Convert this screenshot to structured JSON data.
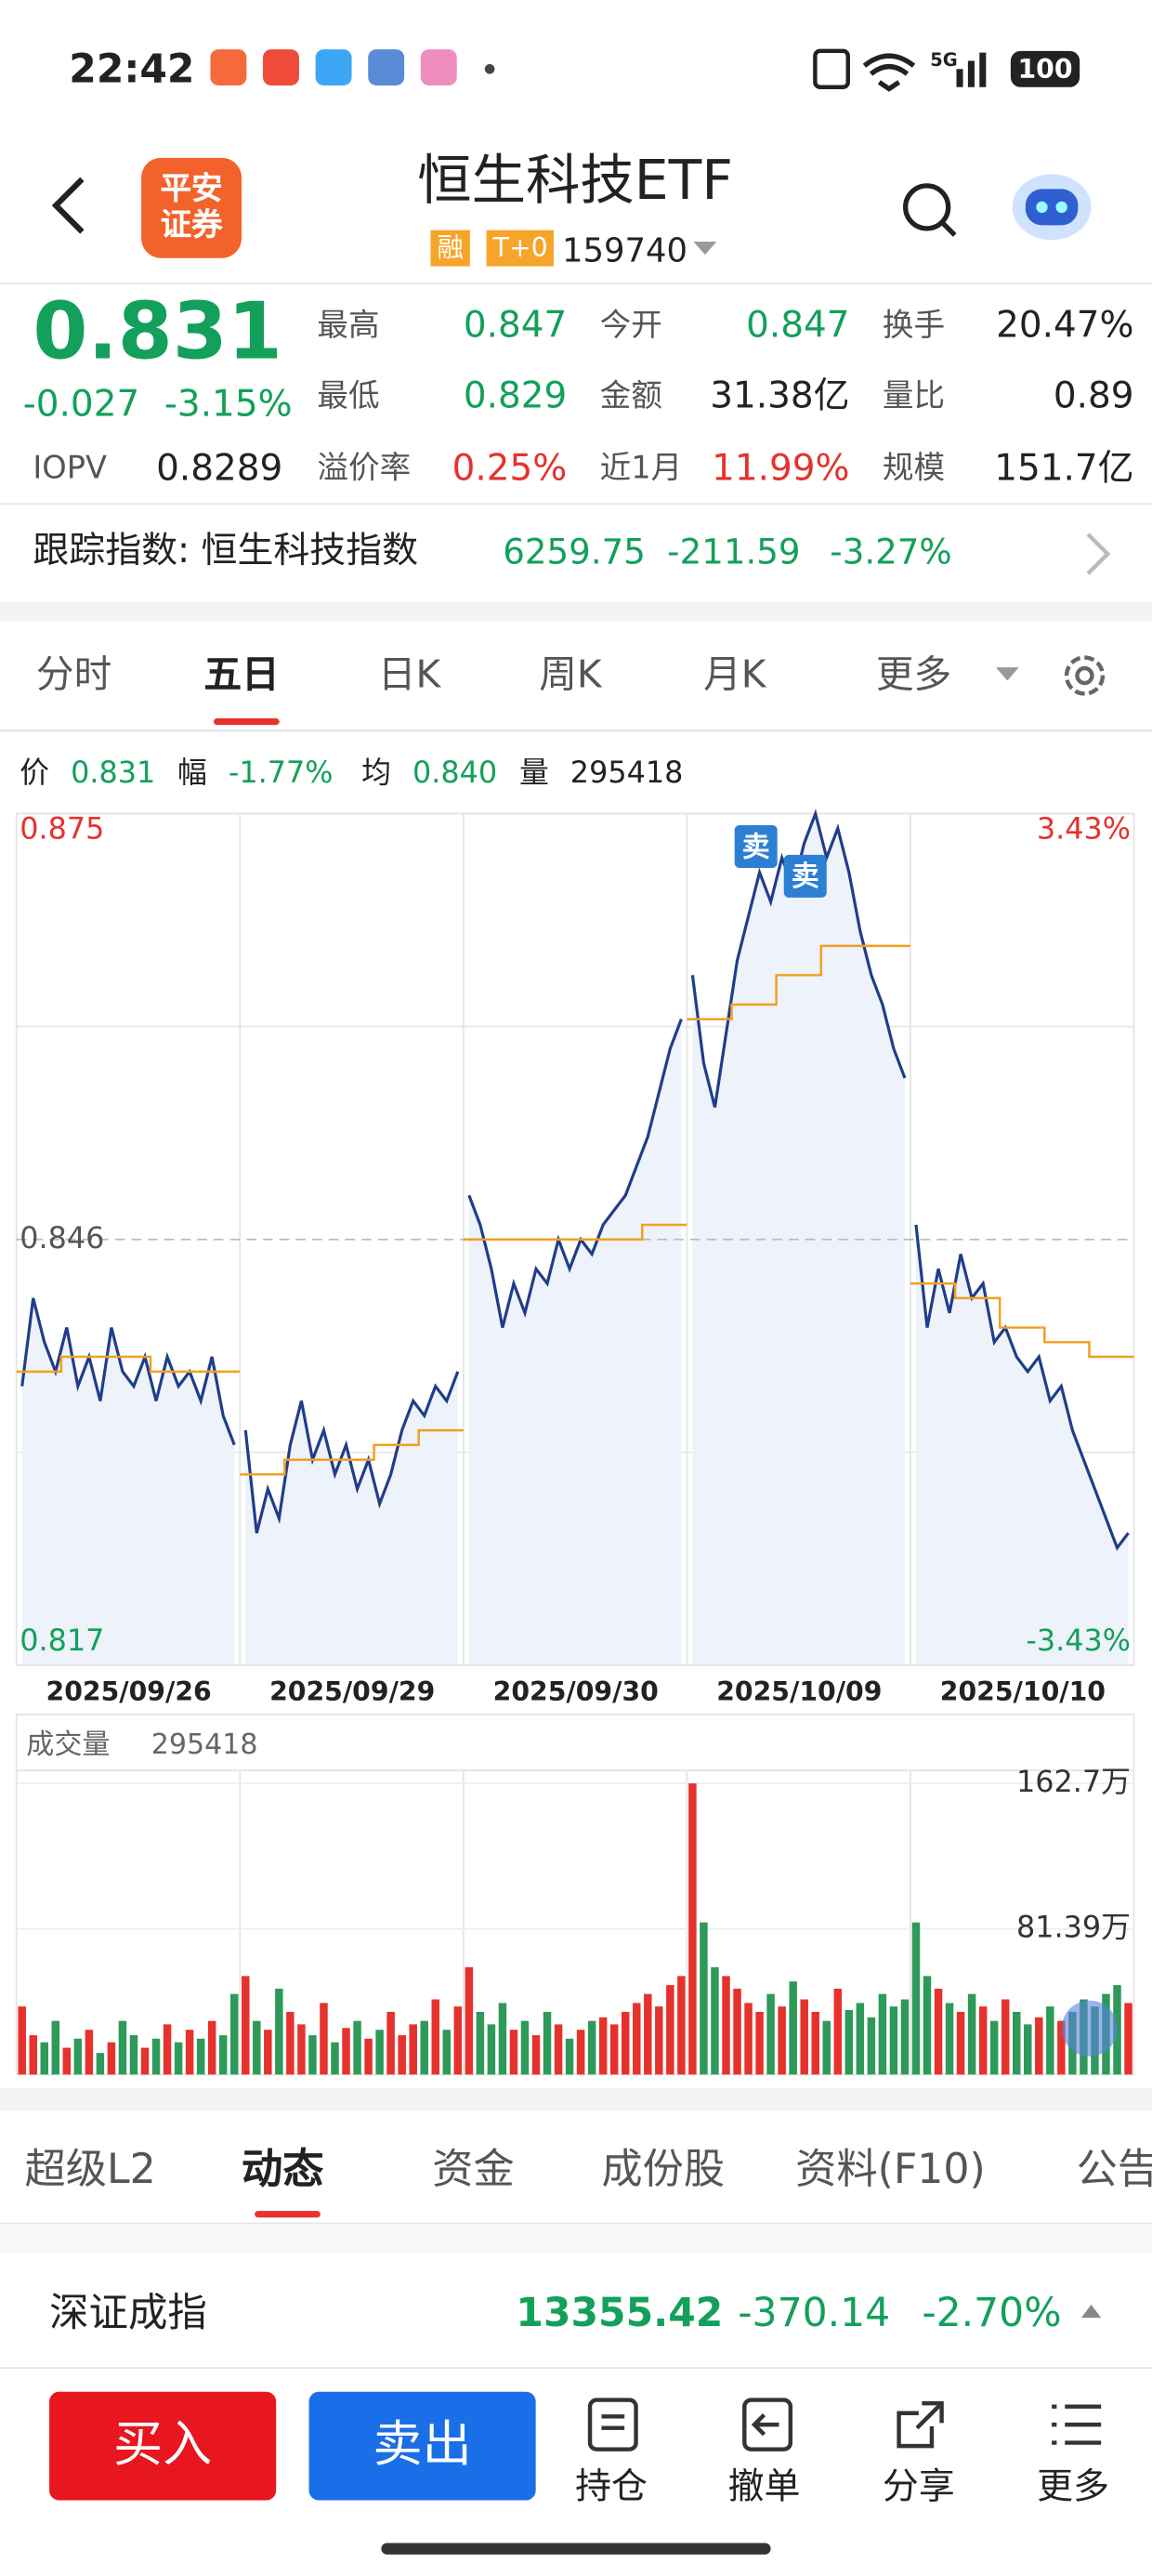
{
  "status_bar": {
    "time": "22:42",
    "network": "5G",
    "battery": "100"
  },
  "header": {
    "logo": [
      "平安",
      "证券"
    ],
    "title": "恒生科技ETF",
    "tags": [
      "融",
      "T+0"
    ],
    "code": "159740"
  },
  "quote": {
    "price": "0.831",
    "change": "-0.027",
    "change_pct": "-3.15%",
    "stats": [
      {
        "label": "最高",
        "value": "0.847"
      },
      {
        "label": "今开",
        "value": "0.847"
      },
      {
        "label": "换手",
        "value": "20.47%"
      },
      {
        "label": "最低",
        "value": "0.829"
      },
      {
        "label": "金额",
        "value": "31.38亿"
      },
      {
        "label": "量比",
        "value": "0.89"
      },
      {
        "label": "IOPV",
        "value": "0.8289"
      },
      {
        "label": "溢价率",
        "value": "0.25%"
      },
      {
        "label": "近1月",
        "value": "11.99%"
      },
      {
        "label": "规模",
        "value": "151.7亿"
      }
    ]
  },
  "tracking": {
    "label": "跟踪指数: 恒生科技指数",
    "value": "6259.75",
    "change": "-211.59",
    "change_pct": "-3.27%"
  },
  "chart_tabs": [
    "分时",
    "五日",
    "日K",
    "周K",
    "月K",
    "更多"
  ],
  "info": [
    {
      "label": "价",
      "value": "0.831"
    },
    {
      "label": "幅",
      "value": "-1.77%"
    },
    {
      "label": "均",
      "value": "0.840"
    },
    {
      "label": "量",
      "value": "295418"
    }
  ],
  "chart_data": [
    {
      "type": "line",
      "categories": [
        "2025/09/26",
        "2025/09/29",
        "2025/09/30",
        "2025/10/09",
        "2025/10/10"
      ],
      "ylim": [
        0.817,
        0.875
      ],
      "yticks": [
        0.817,
        0.846,
        0.875
      ],
      "y2lim": [
        -3.43,
        3.43
      ],
      "y2ticks": [
        {
          "value": -3.43,
          "label": "-3.43%"
        },
        {
          "value": 3.43,
          "label": "3.43%"
        }
      ],
      "annotations": [
        "卖",
        "卖"
      ],
      "series": [
        {
          "color": "#1f3d8a",
          "values": [
            [
              0.836,
              0.842,
              0.839,
              0.837,
              0.84,
              0.836,
              0.838,
              0.835,
              0.84,
              0.837,
              0.836,
              0.838,
              0.835,
              0.838,
              0.836,
              0.837,
              0.835,
              0.838,
              0.834,
              0.832
            ],
            [
              0.833,
              0.826,
              0.829,
              0.827,
              0.832,
              0.835,
              0.831,
              0.833,
              0.83,
              0.832,
              0.829,
              0.831,
              0.828,
              0.83,
              0.833,
              0.835,
              0.834,
              0.836,
              0.835,
              0.837
            ],
            [
              0.849,
              0.847,
              0.844,
              0.84,
              0.843,
              0.841,
              0.844,
              0.843,
              0.846,
              0.844,
              0.846,
              0.845,
              0.847,
              0.848,
              0.849,
              0.851,
              0.853,
              0.856,
              0.859,
              0.861
            ],
            [
              0.864,
              0.858,
              0.855,
              0.86,
              0.865,
              0.868,
              0.871,
              0.869,
              0.872,
              0.87,
              0.873,
              0.875,
              0.872,
              0.874,
              0.871,
              0.867,
              0.864,
              0.862,
              0.859,
              0.857
            ],
            [
              0.847,
              0.84,
              0.844,
              0.841,
              0.845,
              0.842,
              0.843,
              0.839,
              0.84,
              0.838,
              0.837,
              0.838,
              0.835,
              0.836,
              0.833,
              0.831,
              0.829,
              0.827,
              0.825,
              0.826
            ]
          ]
        },
        {
          "color": "#f0a020",
          "values": [
            [
              0.837,
              0.838,
              0.838,
              0.837,
              0.837
            ],
            [
              0.83,
              0.831,
              0.831,
              0.832,
              0.833
            ],
            [
              0.846,
              0.846,
              0.846,
              0.846,
              0.847
            ],
            [
              0.861,
              0.862,
              0.864,
              0.866,
              0.866
            ],
            [
              0.843,
              0.842,
              0.84,
              0.839,
              0.838
            ]
          ]
        }
      ]
    },
    {
      "type": "bar",
      "title": "成交量",
      "subtitle": "295418",
      "up_color": "#e5322d",
      "down_color": "#2e9a5a",
      "ylim": [
        0,
        170
      ],
      "yticks": [
        {
          "value": 81.39,
          "label": "81.39万"
        },
        {
          "value": 162.7,
          "label": "162.7万"
        }
      ],
      "series": [
        {
          "values": [
            [
              38,
              22,
              18,
              30,
              15,
              20,
              25,
              12,
              18,
              30,
              22,
              15,
              20,
              28,
              18,
              25,
              20,
              30,
              22,
              45
            ],
            [
              55,
              30,
              25,
              48,
              35,
              28,
              22,
              40,
              18,
              26,
              30,
              20,
              25,
              35,
              22,
              28,
              30,
              42,
              25,
              38
            ],
            [
              60,
              35,
              28,
              40,
              25,
              30,
              22,
              35,
              28,
              20,
              25,
              30,
              32,
              28,
              35,
              40,
              45,
              38,
              50,
              55
            ],
            [
              162.7,
              85,
              60,
              55,
              48,
              40,
              35,
              45,
              38,
              52,
              42,
              35,
              30,
              48,
              36,
              40,
              32,
              45,
              38,
              42
            ],
            [
              85,
              55,
              48,
              40,
              35,
              45,
              38,
              30,
              42,
              35,
              28,
              32,
              38,
              30,
              35,
              42,
              38,
              45,
              50,
              40
            ]
          ]
        }
      ]
    }
  ],
  "detail_tabs": [
    "超级L2",
    "动态",
    "资金",
    "成份股",
    "资料(F10)",
    "公告"
  ],
  "index_bar": {
    "name": "深证成指",
    "value": "13355.42",
    "change": "-370.14",
    "change_pct": "-2.70%"
  },
  "bottom_nav": {
    "buy": "买入",
    "sell": "卖出",
    "items": [
      "持仓",
      "撤单",
      "分享",
      "更多"
    ]
  }
}
